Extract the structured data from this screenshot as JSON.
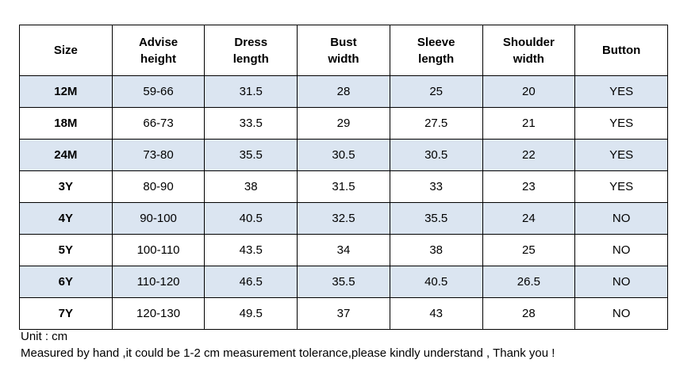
{
  "table": {
    "header": [
      "Size",
      "Advise height",
      "Dress length",
      "Bust width",
      "Sleeve length",
      "Shoulder width",
      "Button"
    ],
    "rows": [
      [
        "12M",
        "59-66",
        "31.5",
        "28",
        "25",
        "20",
        "YES"
      ],
      [
        "18M",
        "66-73",
        "33.5",
        "29",
        "27.5",
        "21",
        "YES"
      ],
      [
        "24M",
        "73-80",
        "35.5",
        "30.5",
        "30.5",
        "22",
        "YES"
      ],
      [
        "3Y",
        "80-90",
        "38",
        "31.5",
        "33",
        "23",
        "YES"
      ],
      [
        "4Y",
        "90-100",
        "40.5",
        "32.5",
        "35.5",
        "24",
        "NO"
      ],
      [
        "5Y",
        "100-110",
        "43.5",
        "34",
        "38",
        "25",
        "NO"
      ],
      [
        "6Y",
        "110-120",
        "46.5",
        "35.5",
        "40.5",
        "26.5",
        "NO"
      ],
      [
        "7Y",
        "120-130",
        "49.5",
        "37",
        "43",
        "28",
        "NO"
      ]
    ]
  },
  "notes": {
    "unit": "Unit : cm",
    "tolerance": "Measured by hand ,it could be 1-2 cm measurement tolerance,please kindly understand , Thank you !"
  }
}
